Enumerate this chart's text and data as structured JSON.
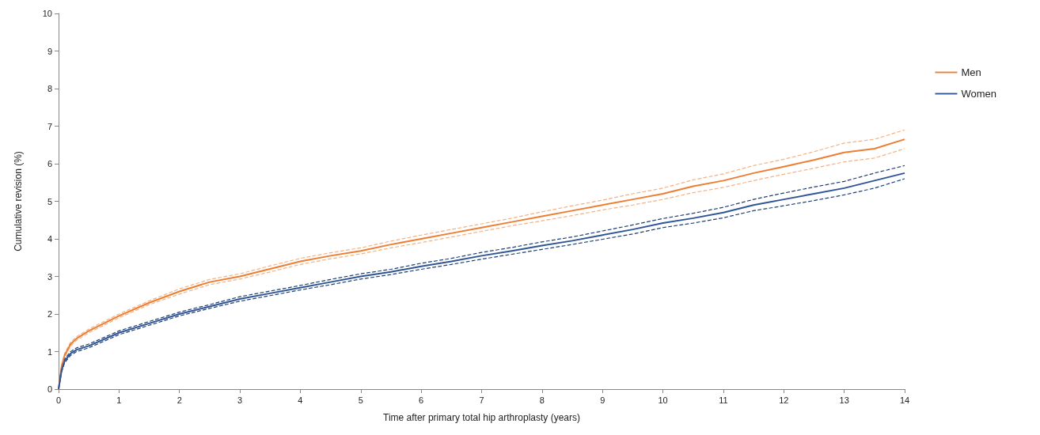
{
  "chart_data": {
    "type": "line",
    "xlabel": "Time after primary total hip arthroplasty (years)",
    "ylabel": "Cumulative revision (%)",
    "xlim": [
      0,
      14
    ],
    "xticks": [
      0,
      1,
      2,
      3,
      4,
      5,
      6,
      7,
      8,
      9,
      10,
      11,
      12,
      13,
      14
    ],
    "ylim": [
      0,
      10
    ],
    "yticks": [
      0,
      1,
      2,
      3,
      4,
      5,
      6,
      7,
      8,
      9,
      10
    ],
    "grid": false,
    "legend": "right",
    "marker": "none",
    "line_style": "solid",
    "x": [
      0,
      0.05,
      0.1,
      0.2,
      0.3,
      0.5,
      1,
      1.5,
      2,
      2.5,
      3,
      3.5,
      4,
      4.5,
      5,
      5.5,
      6,
      6.5,
      7,
      7.5,
      8,
      8.5,
      9,
      9.5,
      10,
      10.5,
      11,
      11.5,
      12,
      12.5,
      13,
      13.5,
      14
    ],
    "series": [
      {
        "name": "Men",
        "color": "#ed7d31",
        "values": [
          0,
          0.6,
          0.9,
          1.2,
          1.35,
          1.55,
          1.95,
          2.3,
          2.6,
          2.85,
          3.0,
          3.2,
          3.4,
          3.55,
          3.68,
          3.85,
          4.0,
          4.15,
          4.3,
          4.45,
          4.6,
          4.75,
          4.9,
          5.05,
          5.2,
          5.4,
          5.55,
          5.75,
          5.92,
          6.1,
          6.3,
          6.4,
          6.65
        ]
      },
      {
        "color": "#f4b183",
        "line_style": "dashed",
        "values": [
          0,
          0.55,
          0.85,
          1.15,
          1.3,
          1.5,
          1.9,
          2.25,
          2.53,
          2.78,
          2.93,
          3.12,
          3.32,
          3.47,
          3.6,
          3.76,
          3.9,
          4.05,
          4.2,
          4.35,
          4.48,
          4.62,
          4.77,
          4.9,
          5.05,
          5.23,
          5.37,
          5.55,
          5.72,
          5.88,
          6.05,
          6.15,
          6.4
        ]
      },
      {
        "color": "#f4b183",
        "line_style": "dashed",
        "values": [
          0,
          0.65,
          0.95,
          1.25,
          1.4,
          1.6,
          2.0,
          2.35,
          2.67,
          2.92,
          3.07,
          3.28,
          3.48,
          3.63,
          3.76,
          3.94,
          4.1,
          4.25,
          4.4,
          4.55,
          4.72,
          4.88,
          5.03,
          5.2,
          5.35,
          5.57,
          5.73,
          5.95,
          6.12,
          6.32,
          6.55,
          6.65,
          6.9
        ]
      },
      {
        "name": "Women",
        "color": "#2f5597",
        "values": [
          0,
          0.5,
          0.75,
          0.95,
          1.05,
          1.15,
          1.5,
          1.75,
          2.0,
          2.2,
          2.4,
          2.55,
          2.7,
          2.85,
          3.0,
          3.12,
          3.27,
          3.4,
          3.55,
          3.68,
          3.82,
          3.95,
          4.1,
          4.25,
          4.42,
          4.55,
          4.7,
          4.9,
          5.05,
          5.2,
          5.35,
          5.55,
          5.75
        ]
      },
      {
        "color": "#1f3f73",
        "line_style": "dashed",
        "values": [
          0,
          0.45,
          0.7,
          0.9,
          1.0,
          1.1,
          1.45,
          1.7,
          1.95,
          2.15,
          2.34,
          2.49,
          2.64,
          2.78,
          2.93,
          3.05,
          3.19,
          3.32,
          3.46,
          3.59,
          3.72,
          3.85,
          3.99,
          4.13,
          4.3,
          4.42,
          4.56,
          4.75,
          4.88,
          5.02,
          5.17,
          5.35,
          5.6
        ]
      },
      {
        "color": "#1f3f73",
        "line_style": "dashed",
        "values": [
          0,
          0.55,
          0.8,
          1.0,
          1.1,
          1.2,
          1.55,
          1.8,
          2.05,
          2.25,
          2.46,
          2.61,
          2.76,
          2.92,
          3.07,
          3.19,
          3.35,
          3.48,
          3.64,
          3.77,
          3.92,
          4.05,
          4.21,
          4.37,
          4.54,
          4.68,
          4.84,
          5.05,
          5.22,
          5.38,
          5.53,
          5.75,
          5.95
        ]
      }
    ]
  }
}
